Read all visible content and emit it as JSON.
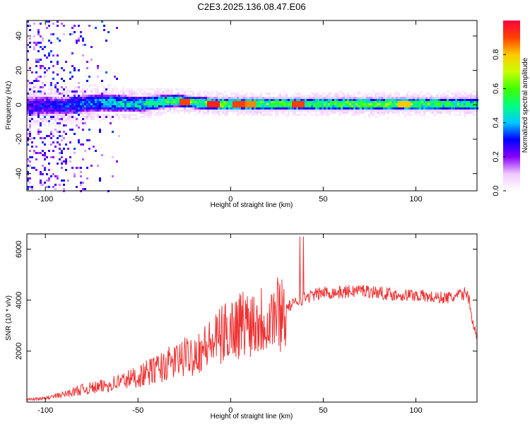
{
  "title": "C2E3.2025.136.08.47.E06",
  "chart_data": [
    {
      "type": "heatmap",
      "xlabel": "Height of straight line (km)",
      "ylabel": "Frequency (Hz)",
      "xlim": [
        -110,
        133
      ],
      "ylim": [
        -50,
        49
      ],
      "xticks": [
        -100,
        -50,
        0,
        50,
        100
      ],
      "yticks": [
        -40,
        -20,
        0,
        20,
        40
      ],
      "colorbar": {
        "label": "Normalized spectral amplitude",
        "range": [
          0,
          1
        ],
        "ticks": [
          0.0,
          0.2,
          0.4,
          0.6,
          0.8
        ],
        "tick_labels": [
          "0.0",
          "0.2",
          "0.4",
          "0.6",
          "0.8"
        ],
        "colormap": [
          "#ffffff",
          "#f0c8ff",
          "#8800ff",
          "#0000ff",
          "#00c8ff",
          "#00ff80",
          "#40ff00",
          "#c8ff00",
          "#ffc800",
          "#ff4000",
          "#ff0040"
        ]
      },
      "band": [
        {
          "x": -110,
          "center": 0,
          "halfwidth": 7,
          "amp": 0.25
        },
        {
          "x": -90,
          "center": 0,
          "halfwidth": 6,
          "amp": 0.3
        },
        {
          "x": -70,
          "center": 2,
          "halfwidth": 6,
          "amp": 0.4
        },
        {
          "x": -50,
          "center": 1,
          "halfwidth": 5,
          "amp": 0.45
        },
        {
          "x": -30,
          "center": 3,
          "halfwidth": 4,
          "amp": 0.55
        },
        {
          "x": -10,
          "center": 1,
          "halfwidth": 4,
          "amp": 0.6
        },
        {
          "x": 10,
          "center": 1,
          "halfwidth": 4,
          "amp": 0.6
        },
        {
          "x": 30,
          "center": 1,
          "halfwidth": 4,
          "amp": 0.55
        },
        {
          "x": 50,
          "center": 1,
          "halfwidth": 4,
          "amp": 0.55
        },
        {
          "x": 70,
          "center": 1,
          "halfwidth": 4,
          "amp": 0.6
        },
        {
          "x": 90,
          "center": 1,
          "halfwidth": 4,
          "amp": 0.6
        },
        {
          "x": 110,
          "center": 1,
          "halfwidth": 4,
          "amp": 0.55
        },
        {
          "x": 133,
          "center": 1,
          "halfwidth": 4,
          "amp": 0.5
        }
      ],
      "peaks": [
        {
          "x": -10,
          "freq": 1,
          "amp": 0.95
        },
        {
          "x": -25,
          "freq": 2,
          "amp": 0.9
        },
        {
          "x": 4,
          "freq": 1,
          "amp": 0.9
        },
        {
          "x": 10,
          "freq": 1,
          "amp": 0.85
        },
        {
          "x": 36,
          "freq": 1,
          "amp": 0.9
        },
        {
          "x": 93,
          "freq": 1,
          "amp": 0.8
        }
      ]
    },
    {
      "type": "line",
      "xlabel": "Height of straight line (km)",
      "ylabel": "SNR (10 * v/v)",
      "xlim": [
        -110,
        133
      ],
      "ylim": [
        0,
        6600
      ],
      "xticks": [
        -100,
        -50,
        0,
        50,
        100
      ],
      "yticks": [
        2000,
        4000,
        6000
      ],
      "line_color": "#ee3333",
      "series": [
        {
          "x": [
            -110,
            -100,
            -90,
            -80,
            -70,
            -60,
            -50,
            -40,
            -30,
            -20,
            -10,
            0,
            10,
            20,
            30,
            40,
            50,
            60,
            70,
            80,
            90,
            100,
            110,
            120,
            128,
            130,
            133
          ],
          "values": [
            100,
            150,
            300,
            500,
            600,
            800,
            1000,
            1300,
            1600,
            1900,
            2300,
            2900,
            3200,
            3300,
            3700,
            4100,
            4300,
            4300,
            4400,
            4300,
            4200,
            4200,
            4100,
            4100,
            4300,
            3400,
            2500
          ]
        }
      ]
    }
  ]
}
